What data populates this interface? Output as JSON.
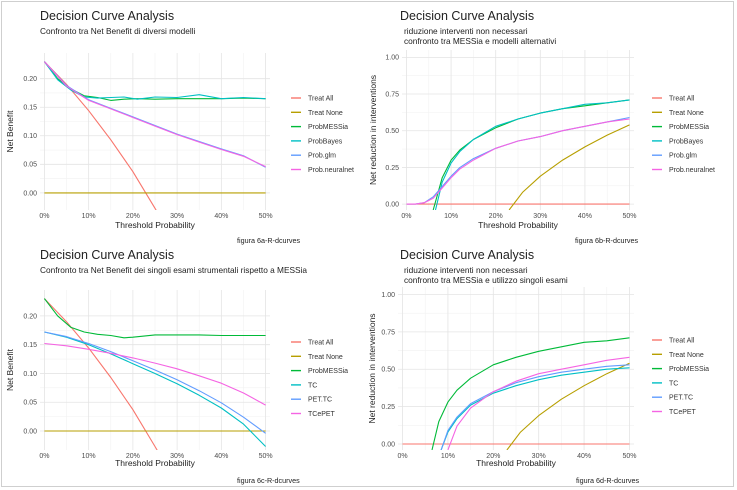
{
  "chart_data": [
    {
      "type": "line",
      "title": "Decision Curve Analysis",
      "subtitle": [
        "Confronto tra Net Benefit di diversi modelli"
      ],
      "caption": "figura 6a-R-dcurves",
      "xlabel": "Threshold Probability",
      "ylabel": "Net Benefit",
      "xlim": [
        -0.01,
        0.51
      ],
      "ylim": [
        -0.03,
        0.245
      ],
      "yticks": [
        0,
        0.05,
        0.1,
        0.15,
        0.2
      ],
      "ytick_labels": [
        "0.00",
        "0.05",
        "0.10",
        "0.15",
        "0.20"
      ],
      "xticks": [
        0,
        0.1,
        0.2,
        0.3,
        0.4,
        0.5
      ],
      "xtick_labels": [
        "0%",
        "10%",
        "20%",
        "30%",
        "40%",
        "50%"
      ],
      "grid": true,
      "legend_position": "right",
      "series": [
        {
          "name": "Treat All",
          "color": "#F8766D",
          "x": [
            0,
            0.05,
            0.1,
            0.15,
            0.2,
            0.25,
            0.26
          ],
          "y": [
            0.23,
            0.19,
            0.144,
            0.093,
            0.037,
            -0.027,
            -0.04
          ]
        },
        {
          "name": "Treat None",
          "color": "#B79F00",
          "x": [
            0,
            0.5
          ],
          "y": [
            0,
            0
          ]
        },
        {
          "name": "ProbMESSia",
          "color": "#00BA38",
          "x": [
            0,
            0.03,
            0.06,
            0.09,
            0.12,
            0.15,
            0.18,
            0.21,
            0.25,
            0.3,
            0.35,
            0.4,
            0.45,
            0.5
          ],
          "y": [
            0.23,
            0.2,
            0.182,
            0.17,
            0.167,
            0.162,
            0.164,
            0.165,
            0.164,
            0.165,
            0.165,
            0.165,
            0.166,
            0.165
          ]
        },
        {
          "name": "ProbBayes",
          "color": "#00BFC4",
          "x": [
            0,
            0.03,
            0.06,
            0.09,
            0.12,
            0.15,
            0.18,
            0.21,
            0.25,
            0.3,
            0.35,
            0.4,
            0.45,
            0.5
          ],
          "y": [
            0.23,
            0.198,
            0.18,
            0.168,
            0.166,
            0.167,
            0.168,
            0.164,
            0.168,
            0.167,
            0.172,
            0.165,
            0.167,
            0.165
          ]
        },
        {
          "name": "Prob.glm",
          "color": "#619CFF",
          "x": [
            0,
            0.05,
            0.1,
            0.15,
            0.2,
            0.25,
            0.3,
            0.35,
            0.4,
            0.45,
            0.5
          ],
          "y": [
            0.23,
            0.188,
            0.163,
            0.148,
            0.133,
            0.118,
            0.103,
            0.09,
            0.077,
            0.065,
            0.045
          ]
        },
        {
          "name": "Prob.neuralnet",
          "color": "#F564E3",
          "x": [
            0,
            0.05,
            0.1,
            0.15,
            0.2,
            0.25,
            0.3,
            0.35,
            0.4,
            0.45,
            0.5
          ],
          "y": [
            0.23,
            0.187,
            0.162,
            0.147,
            0.132,
            0.117,
            0.102,
            0.089,
            0.076,
            0.064,
            0.046
          ]
        }
      ]
    },
    {
      "type": "line",
      "title": "Decision Curve Analysis",
      "subtitle": [
        "riduzione interventi non necessari",
        "confronto tra MESSia e modelli alternativi"
      ],
      "caption": "figura 6b-R-dcurves",
      "xlabel": "Threshold Probability",
      "ylabel": "Net reduction in interventions",
      "xlim": [
        -0.01,
        0.51
      ],
      "ylim": [
        -0.04,
        1.05
      ],
      "yticks": [
        0,
        0.25,
        0.5,
        0.75,
        1
      ],
      "ytick_labels": [
        "0.00",
        "0.25",
        "0.50",
        "0.75",
        "1.00"
      ],
      "xticks": [
        0,
        0.1,
        0.2,
        0.3,
        0.4,
        0.5
      ],
      "xtick_labels": [
        "0%",
        "10%",
        "20%",
        "30%",
        "40%",
        "50%"
      ],
      "grid": true,
      "legend_position": "right",
      "series": [
        {
          "name": "Treat All",
          "color": "#F8766D",
          "x": [
            0,
            0.5
          ],
          "y": [
            0,
            0
          ]
        },
        {
          "name": "Treat None",
          "color": "#B79F00",
          "x": [
            0.23,
            0.26,
            0.3,
            0.35,
            0.4,
            0.45,
            0.5
          ],
          "y": [
            -0.04,
            0.08,
            0.19,
            0.3,
            0.39,
            0.47,
            0.54
          ]
        },
        {
          "name": "ProbMESSia",
          "color": "#00BA38",
          "x": [
            0.06,
            0.08,
            0.1,
            0.12,
            0.15,
            0.2,
            0.25,
            0.3,
            0.35,
            0.4,
            0.45,
            0.5
          ],
          "y": [
            -0.04,
            0.18,
            0.3,
            0.37,
            0.44,
            0.52,
            0.58,
            0.62,
            0.65,
            0.67,
            0.69,
            0.71
          ]
        },
        {
          "name": "ProbBayes",
          "color": "#00BFC4",
          "x": [
            0.065,
            0.08,
            0.1,
            0.12,
            0.15,
            0.2,
            0.25,
            0.3,
            0.35,
            0.4,
            0.45,
            0.5
          ],
          "y": [
            -0.04,
            0.15,
            0.28,
            0.36,
            0.44,
            0.53,
            0.58,
            0.62,
            0.65,
            0.68,
            0.69,
            0.71
          ]
        },
        {
          "name": "Prob.glm",
          "color": "#619CFF",
          "x": [
            0,
            0.02,
            0.04,
            0.06,
            0.08,
            0.1,
            0.12,
            0.15,
            0.2,
            0.25,
            0.3,
            0.35,
            0.4,
            0.45,
            0.5
          ],
          "y": [
            0,
            0,
            0.01,
            0.05,
            0.12,
            0.19,
            0.25,
            0.31,
            0.38,
            0.43,
            0.46,
            0.5,
            0.53,
            0.56,
            0.59
          ]
        },
        {
          "name": "Prob.neuralnet",
          "color": "#F564E3",
          "x": [
            0,
            0.02,
            0.04,
            0.06,
            0.08,
            0.1,
            0.12,
            0.15,
            0.2,
            0.25,
            0.3,
            0.35,
            0.4,
            0.45,
            0.5
          ],
          "y": [
            0,
            0,
            0.01,
            0.04,
            0.11,
            0.18,
            0.24,
            0.3,
            0.38,
            0.43,
            0.46,
            0.5,
            0.53,
            0.56,
            0.58
          ]
        }
      ]
    },
    {
      "type": "line",
      "title": "Decision Curve Analysis",
      "subtitle": [
        "Confronto tra Net Benefit dei singoli esami strumentali rispetto a MESSia"
      ],
      "caption": "figura 6c-R-dcurves",
      "xlabel": "Threshold Probability",
      "ylabel": "Net Benefit",
      "xlim": [
        -0.01,
        0.51
      ],
      "ylim": [
        -0.033,
        0.245
      ],
      "yticks": [
        0,
        0.05,
        0.1,
        0.15,
        0.2
      ],
      "ytick_labels": [
        "0.00",
        "0.05",
        "0.10",
        "0.15",
        "0.20"
      ],
      "xticks": [
        0,
        0.1,
        0.2,
        0.3,
        0.4,
        0.5
      ],
      "xtick_labels": [
        "0%",
        "10%",
        "20%",
        "30%",
        "40%",
        "50%"
      ],
      "grid": true,
      "legend_position": "right",
      "series": [
        {
          "name": "Treat All",
          "color": "#F8766D",
          "x": [
            0,
            0.05,
            0.1,
            0.15,
            0.2,
            0.25,
            0.26
          ],
          "y": [
            0.23,
            0.19,
            0.144,
            0.093,
            0.037,
            -0.027,
            -0.04
          ]
        },
        {
          "name": "Treat None",
          "color": "#B79F00",
          "x": [
            0,
            0.5
          ],
          "y": [
            0,
            0
          ]
        },
        {
          "name": "ProbMESSia",
          "color": "#00BA38",
          "x": [
            0,
            0.03,
            0.06,
            0.09,
            0.12,
            0.15,
            0.18,
            0.2,
            0.25,
            0.3,
            0.35,
            0.4,
            0.45,
            0.5
          ],
          "y": [
            0.23,
            0.2,
            0.18,
            0.172,
            0.168,
            0.166,
            0.162,
            0.163,
            0.167,
            0.167,
            0.167,
            0.166,
            0.166,
            0.166
          ]
        },
        {
          "name": "TC",
          "color": "#00BFC4",
          "x": [
            0,
            0.05,
            0.1,
            0.15,
            0.2,
            0.25,
            0.3,
            0.35,
            0.4,
            0.45,
            0.5
          ],
          "y": [
            0.172,
            0.163,
            0.15,
            0.134,
            0.117,
            0.1,
            0.082,
            0.062,
            0.04,
            0.012,
            -0.027
          ]
        },
        {
          "name": "PET.TC",
          "color": "#619CFF",
          "x": [
            0,
            0.05,
            0.1,
            0.15,
            0.2,
            0.25,
            0.3,
            0.35,
            0.4,
            0.45,
            0.5
          ],
          "y": [
            0.172,
            0.164,
            0.152,
            0.138,
            0.122,
            0.106,
            0.089,
            0.07,
            0.049,
            0.024,
            -0.004
          ]
        },
        {
          "name": "TCePET",
          "color": "#F564E3",
          "x": [
            0,
            0.05,
            0.1,
            0.15,
            0.2,
            0.25,
            0.3,
            0.35,
            0.4,
            0.45,
            0.5
          ],
          "y": [
            0.152,
            0.148,
            0.142,
            0.135,
            0.127,
            0.118,
            0.108,
            0.096,
            0.083,
            0.066,
            0.045
          ]
        }
      ]
    },
    {
      "type": "line",
      "title": "Decision Curve Analysis",
      "subtitle": [
        "riduzione interventi non necessari",
        "confronto tra MESSia e utilizzo singoli esami"
      ],
      "caption": "figura 6d-R-dcurves",
      "xlabel": "Threshold Probability",
      "ylabel": "Net reduction in interventions",
      "xlim": [
        -0.01,
        0.51
      ],
      "ylim": [
        -0.04,
        1.05
      ],
      "yticks": [
        0,
        0.25,
        0.5,
        0.75,
        1
      ],
      "ytick_labels": [
        "0.00",
        "0.25",
        "0.50",
        "0.75",
        "1.00"
      ],
      "xticks": [
        0,
        0.1,
        0.2,
        0.3,
        0.4,
        0.5
      ],
      "xtick_labels": [
        "0%",
        "10%",
        "20%",
        "30%",
        "40%",
        "50%"
      ],
      "grid": true,
      "legend_position": "right",
      "series": [
        {
          "name": "Treat All",
          "color": "#F8766D",
          "x": [
            0,
            0.5
          ],
          "y": [
            0,
            0
          ]
        },
        {
          "name": "Treat None",
          "color": "#B79F00",
          "x": [
            0.23,
            0.26,
            0.3,
            0.35,
            0.4,
            0.45,
            0.5
          ],
          "y": [
            -0.04,
            0.08,
            0.19,
            0.3,
            0.39,
            0.47,
            0.54
          ]
        },
        {
          "name": "ProbMESSia",
          "color": "#00BA38",
          "x": [
            0.065,
            0.08,
            0.1,
            0.12,
            0.15,
            0.2,
            0.25,
            0.3,
            0.35,
            0.4,
            0.45,
            0.5
          ],
          "y": [
            -0.04,
            0.15,
            0.28,
            0.36,
            0.44,
            0.53,
            0.58,
            0.62,
            0.65,
            0.68,
            0.69,
            0.71
          ]
        },
        {
          "name": "TC",
          "color": "#00BFC4",
          "x": [
            0.085,
            0.1,
            0.12,
            0.15,
            0.2,
            0.25,
            0.3,
            0.35,
            0.4,
            0.45,
            0.5
          ],
          "y": [
            -0.04,
            0.08,
            0.17,
            0.26,
            0.34,
            0.39,
            0.43,
            0.46,
            0.48,
            0.5,
            0.51
          ]
        },
        {
          "name": "PET.TC",
          "color": "#619CFF",
          "x": [
            0.085,
            0.1,
            0.12,
            0.15,
            0.2,
            0.25,
            0.3,
            0.35,
            0.4,
            0.45,
            0.5
          ],
          "y": [
            -0.04,
            0.09,
            0.18,
            0.27,
            0.35,
            0.41,
            0.45,
            0.48,
            0.5,
            0.52,
            0.53
          ]
        },
        {
          "name": "TCePET",
          "color": "#F564E3",
          "x": [
            0.1,
            0.12,
            0.15,
            0.2,
            0.25,
            0.3,
            0.35,
            0.4,
            0.45,
            0.5
          ],
          "y": [
            -0.04,
            0.12,
            0.24,
            0.35,
            0.42,
            0.47,
            0.5,
            0.53,
            0.56,
            0.58
          ]
        }
      ]
    }
  ]
}
